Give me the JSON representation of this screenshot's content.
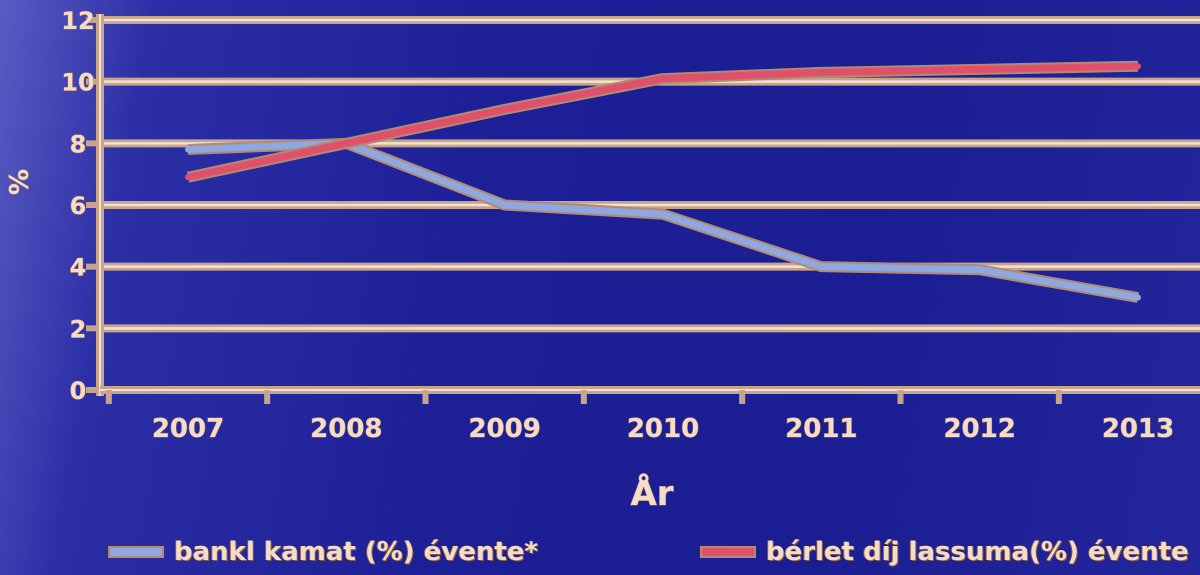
{
  "chart_data": {
    "type": "line",
    "title": "",
    "xlabel": "År",
    "ylabel": "%",
    "categories": [
      "2007",
      "2008",
      "2009",
      "2010",
      "2011",
      "2012",
      "2013"
    ],
    "ylim": [
      0,
      12
    ],
    "yticks": [
      "0",
      "2",
      "4",
      "6",
      "8",
      "10",
      "12"
    ],
    "grid": true,
    "legend_position": "bottom",
    "series": [
      {
        "name": "bankl kamat (%) évente*",
        "color": "#8fa8e0",
        "values": [
          7.8,
          8.0,
          6.0,
          5.7,
          4.0,
          3.9,
          3.0
        ]
      },
      {
        "name": "bérlet díj lassuma(%) évente",
        "color": "#e0506a",
        "values": [
          6.9,
          8.0,
          9.1,
          10.1,
          10.3,
          10.4,
          10.5
        ]
      }
    ],
    "colors": {
      "grid": "#c8a58a",
      "grid_stroke": "#f2e2d2",
      "text": "#f4dcc8"
    }
  }
}
